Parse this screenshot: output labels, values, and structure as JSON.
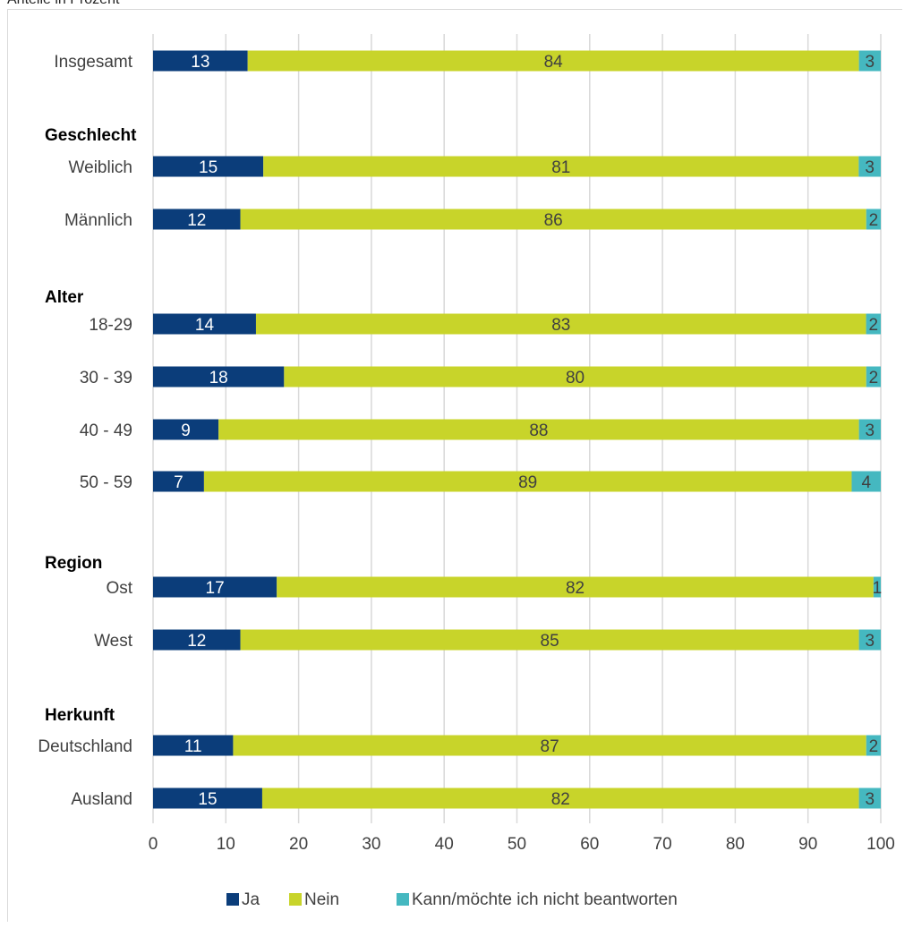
{
  "caption": "Anteile in Prozent",
  "colors": {
    "ja": "#0b3d7a",
    "nein": "#c8d42a",
    "kann": "#45b8c0",
    "grid": "#d9d9d9"
  },
  "chart_data": {
    "type": "bar",
    "orientation": "horizontal",
    "stacked": true,
    "xlim": [
      0,
      100
    ],
    "xticks": [
      "0",
      "10",
      "20",
      "30",
      "40",
      "50",
      "60",
      "70",
      "80",
      "90",
      "100"
    ],
    "grid": true,
    "legend_position": "bottom",
    "series": [
      {
        "name": "Ja",
        "key": "ja"
      },
      {
        "name": "Nein",
        "key": "nein"
      },
      {
        "name": "Kann/möchte ich nicht beantworten",
        "key": "kann"
      }
    ],
    "groups": [
      "Geschlecht",
      "Alter",
      "Region",
      "Herkunft"
    ],
    "rows": [
      {
        "label": "Insgesamt",
        "values": [
          13,
          84,
          3
        ]
      },
      {
        "label": "Weiblich",
        "group": "Geschlecht",
        "values": [
          15,
          81,
          3
        ]
      },
      {
        "label": "Männlich",
        "values": [
          12,
          86,
          2
        ]
      },
      {
        "label": "18-29",
        "group": "Alter",
        "values": [
          14,
          83,
          2
        ]
      },
      {
        "label": "30 - 39",
        "values": [
          18,
          80,
          2
        ]
      },
      {
        "label": "40 - 49",
        "values": [
          9,
          88,
          3
        ]
      },
      {
        "label": "50 - 59",
        "values": [
          7,
          89,
          4
        ]
      },
      {
        "label": "Ost",
        "group": "Region",
        "values": [
          17,
          82,
          1
        ]
      },
      {
        "label": "West",
        "values": [
          12,
          85,
          3
        ]
      },
      {
        "label": "Deutschland",
        "group": "Herkunft",
        "values": [
          11,
          87,
          2
        ]
      },
      {
        "label": "Ausland",
        "values": [
          15,
          82,
          3
        ]
      }
    ]
  }
}
